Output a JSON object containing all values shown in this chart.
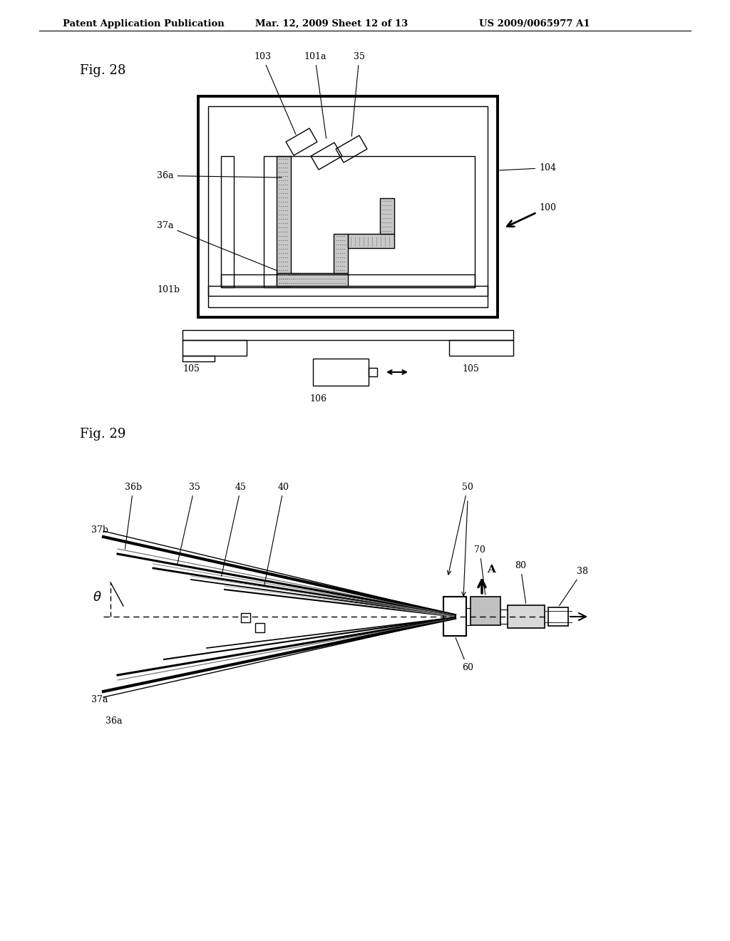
{
  "bg_color": "#ffffff",
  "header_text": "Patent Application Publication",
  "header_date": "Mar. 12, 2009 Sheet 12 of 13",
  "header_patent": "US 2009/0065977 A1",
  "fig28_label": "Fig. 28",
  "fig29_label": "Fig. 29",
  "text_color": "#000000",
  "gray_fill": "#d8d8d8",
  "dotted_fill": "#e8e8e8"
}
